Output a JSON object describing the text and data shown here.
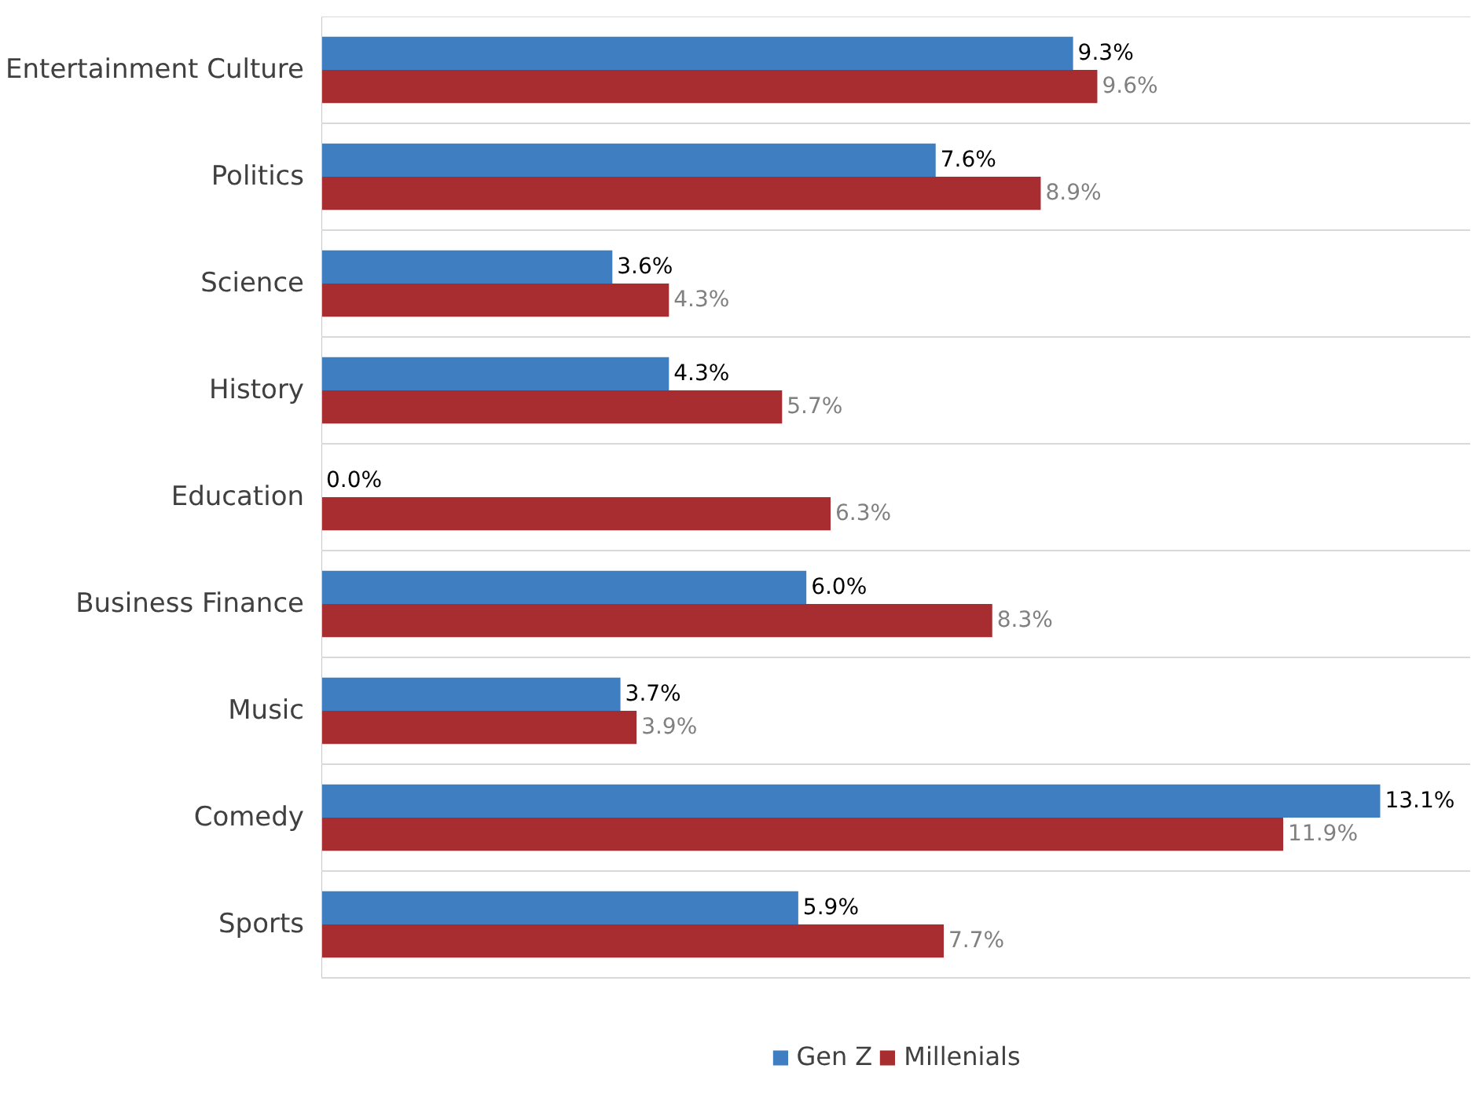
{
  "chart_data": {
    "type": "bar",
    "orientation": "horizontal",
    "categories": [
      "Entertainment Culture",
      "Politics",
      "Science",
      "History",
      "Education",
      "Business Finance",
      "Music",
      "Comedy",
      "Sports"
    ],
    "series": [
      {
        "name": "Gen Z",
        "color": "#3f7fc1",
        "values": [
          9.3,
          7.6,
          3.6,
          4.3,
          0.0,
          6.0,
          3.7,
          13.1,
          5.9
        ],
        "value_labels": [
          "9.3%",
          "7.6%",
          "3.6%",
          "4.3%",
          "0.0%",
          "6.0%",
          "3.7%",
          "13.1%",
          "5.9%"
        ]
      },
      {
        "name": "Millenials",
        "color": "#a72d31",
        "values": [
          9.6,
          8.9,
          4.3,
          5.7,
          6.3,
          8.3,
          3.9,
          11.9,
          7.7
        ],
        "value_labels": [
          "9.6%",
          "8.9%",
          "4.3%",
          "5.7%",
          "6.3%",
          "8.3%",
          "3.9%",
          "11.9%",
          "7.7%"
        ]
      }
    ],
    "grid": "y",
    "legend": "bottom"
  }
}
